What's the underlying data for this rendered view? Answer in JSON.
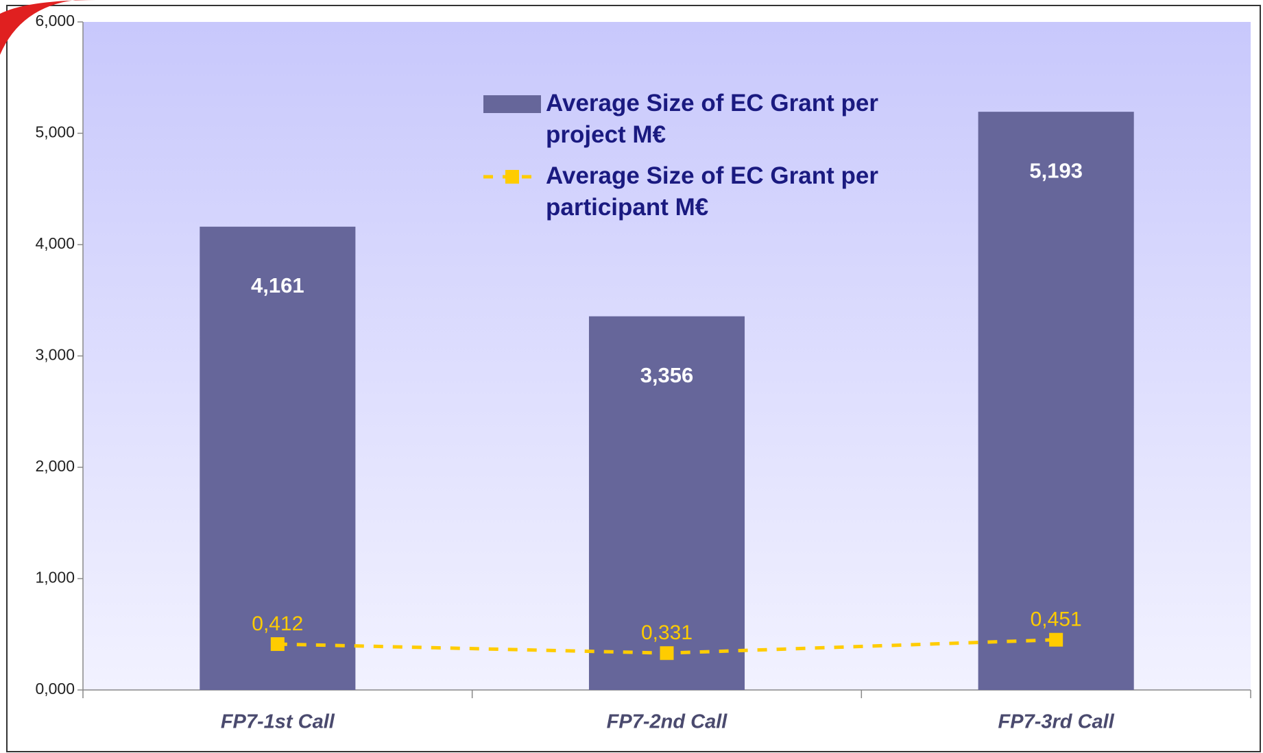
{
  "chart_data": {
    "type": "bar",
    "categories": [
      "FP7-1st Call",
      "FP7-2nd Call",
      "FP7-3rd Call"
    ],
    "series": [
      {
        "name": "Average Size of EC Grant per project M€",
        "type": "bar",
        "color": "#66669a",
        "values": [
          4.161,
          3.356,
          5.193
        ],
        "value_labels": [
          "4,161",
          "3,356",
          "5,193"
        ]
      },
      {
        "name": "Average Size of EC Grant per participant M€",
        "type": "line",
        "color": "#ffcc00",
        "values": [
          0.412,
          0.331,
          0.451
        ],
        "value_labels": [
          "0,412",
          "0,331",
          "0,451"
        ]
      }
    ],
    "ylim": [
      0,
      6
    ],
    "yticks": [
      {
        "value": 0,
        "label": "0,000"
      },
      {
        "value": 1,
        "label": "1,000"
      },
      {
        "value": 2,
        "label": "2,000"
      },
      {
        "value": 3,
        "label": "3,000"
      },
      {
        "value": 4,
        "label": "4,000"
      },
      {
        "value": 5,
        "label": "5,000"
      },
      {
        "value": 6,
        "label": "6,000"
      }
    ],
    "grid": false,
    "legend": "top"
  }
}
